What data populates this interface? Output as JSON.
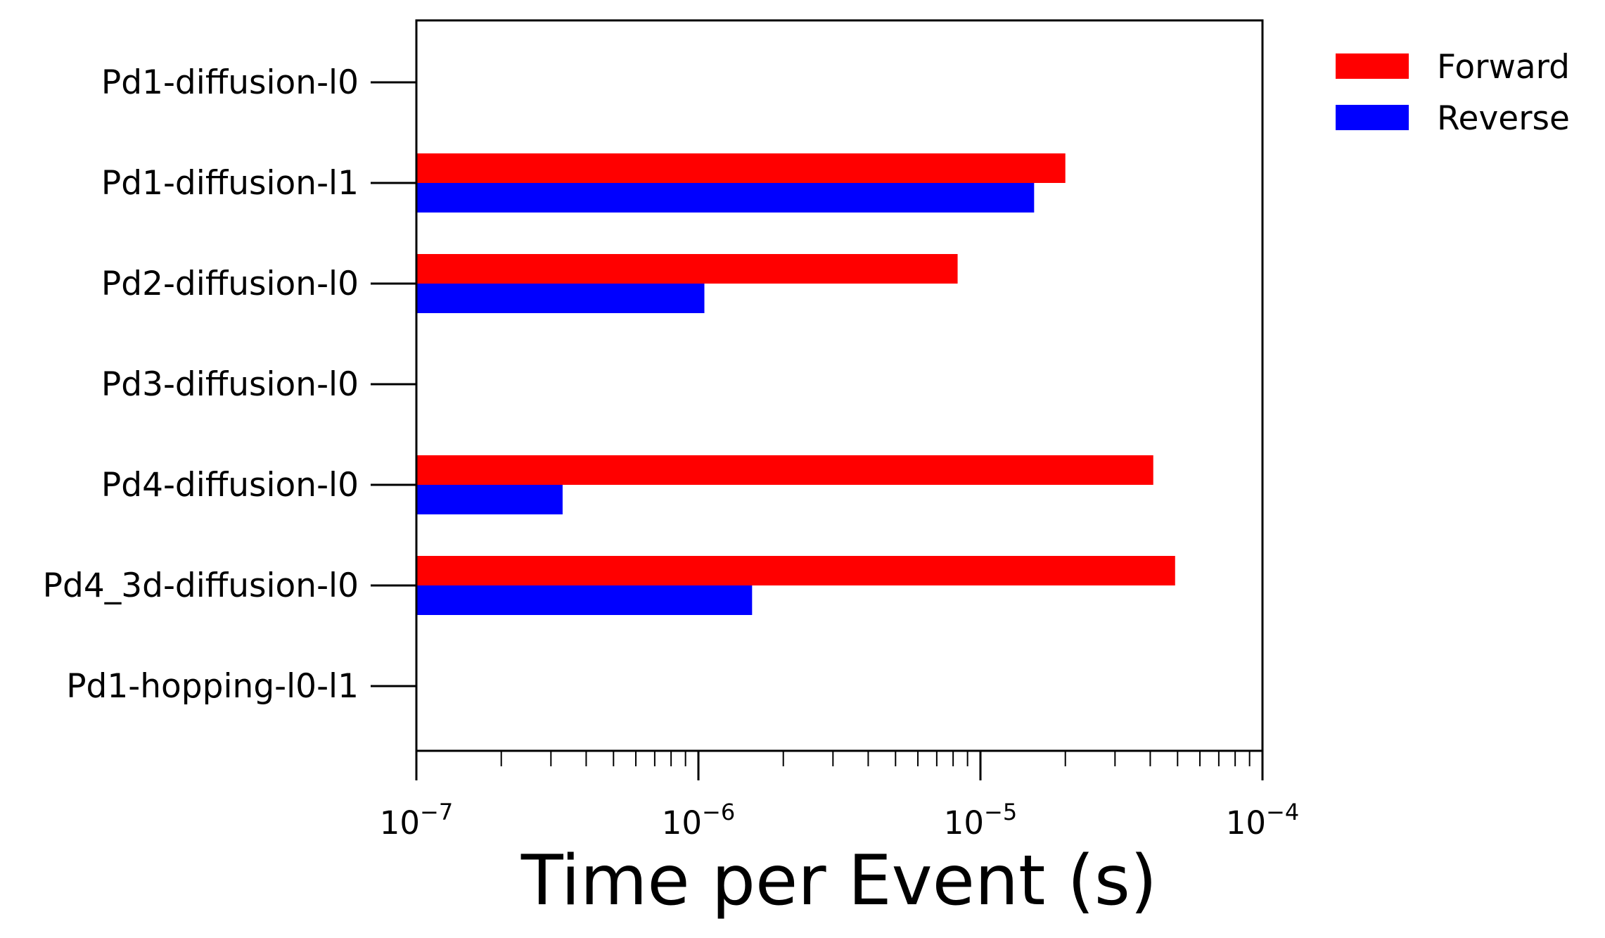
{
  "chart_data": {
    "type": "bar",
    "orientation": "horizontal",
    "x_scale": "log",
    "xlim": [
      1e-07,
      0.0001
    ],
    "x_ticks": [
      {
        "value": 1e-07,
        "base": "10",
        "exp": "−7"
      },
      {
        "value": 1e-06,
        "base": "10",
        "exp": "−6"
      },
      {
        "value": 1e-05,
        "base": "10",
        "exp": "−5"
      },
      {
        "value": 0.0001,
        "base": "10",
        "exp": "−4"
      }
    ],
    "xlabel": "Time per Event (s)",
    "ylabel": "",
    "title": "",
    "grid": false,
    "legend_position": "outside-top-right",
    "categories": [
      "Pd1-diffusion-l0",
      "Pd1-diffusion-l1",
      "Pd2-diffusion-l0",
      "Pd3-diffusion-l0",
      "Pd4-diffusion-l0",
      "Pd4_3d-diffusion-l0",
      "Pd1-hopping-l0-l1"
    ],
    "series": [
      {
        "name": "Forward",
        "color": "#ff0000",
        "values": [
          null,
          2e-05,
          8.3e-06,
          null,
          4.1e-05,
          4.9e-05,
          null
        ]
      },
      {
        "name": "Reverse",
        "color": "#0000ff",
        "values": [
          null,
          1.55e-05,
          1.05e-06,
          null,
          3.3e-07,
          1.55e-06,
          null
        ]
      }
    ]
  }
}
